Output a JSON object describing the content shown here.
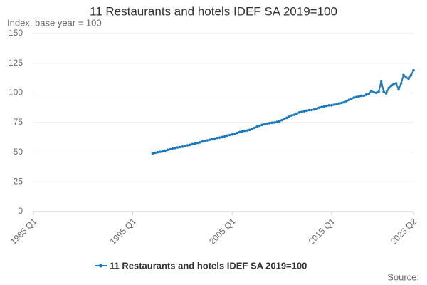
{
  "chart_data": {
    "type": "line",
    "title": "11 Restaurants and hotels IDEF SA 2019=100",
    "subtitle": "Index, base year = 100",
    "source": "Source:",
    "categories": [
      "1985 Q1",
      null,
      null,
      null,
      null,
      null,
      null,
      null,
      null,
      null,
      null,
      null,
      null,
      null,
      null,
      null,
      null,
      null,
      null,
      null,
      null,
      null,
      null,
      null,
      null,
      null,
      null,
      null,
      null,
      null,
      null,
      null,
      null,
      null,
      null,
      null,
      null,
      null,
      null,
      null,
      "1995 Q1",
      null,
      null,
      null,
      null,
      null,
      null,
      null,
      null,
      null,
      null,
      null,
      null,
      null,
      null,
      null,
      null,
      null,
      null,
      null,
      null,
      null,
      null,
      null,
      null,
      null,
      null,
      null,
      null,
      null,
      null,
      null,
      null,
      null,
      null,
      null,
      null,
      null,
      null,
      null,
      "2005 Q1",
      null,
      null,
      null,
      null,
      null,
      null,
      null,
      null,
      null,
      null,
      null,
      null,
      null,
      null,
      null,
      null,
      null,
      null,
      null,
      null,
      null,
      null,
      null,
      null,
      null,
      null,
      null,
      null,
      null,
      null,
      null,
      null,
      null,
      null,
      null,
      null,
      null,
      null,
      null,
      "2015 Q1",
      null,
      null,
      null,
      null,
      null,
      null,
      null,
      null,
      null,
      null,
      null,
      null,
      null,
      null,
      null,
      null,
      null,
      null,
      null,
      null,
      null,
      null,
      null,
      null,
      null,
      null,
      null,
      null,
      null,
      null,
      null,
      null,
      "2023 Q2"
    ],
    "series": [
      {
        "name": "11 Restaurants and hotels IDEF SA 2019=100",
        "color": "#1a7ac0",
        "values": [
          null,
          null,
          null,
          null,
          null,
          null,
          null,
          null,
          null,
          null,
          null,
          null,
          null,
          null,
          null,
          null,
          null,
          null,
          null,
          null,
          null,
          null,
          null,
          null,
          null,
          null,
          null,
          null,
          null,
          null,
          null,
          null,
          null,
          null,
          null,
          null,
          null,
          null,
          null,
          null,
          null,
          null,
          null,
          null,
          null,
          null,
          null,
          null,
          49,
          49.5,
          50,
          50.3,
          50.8,
          51.3,
          52,
          52.5,
          53,
          53.5,
          54,
          54.3,
          54.7,
          55.2,
          55.8,
          56.2,
          56.8,
          57.2,
          57.8,
          58.3,
          59,
          59.5,
          60,
          60.5,
          61,
          61.5,
          62,
          62.3,
          62.8,
          63.3,
          64,
          64.5,
          65,
          65.5,
          66.2,
          67,
          67.5,
          68,
          68.3,
          68.8,
          69.5,
          70.5,
          71.5,
          72.3,
          73,
          73.5,
          74,
          74.5,
          74.8,
          75,
          75.5,
          76,
          77,
          78,
          79,
          80,
          81,
          81.5,
          82.5,
          83.5,
          84,
          84.5,
          85,
          85.5,
          85.5,
          86,
          86.5,
          87.5,
          88,
          88.5,
          89,
          89.5,
          89.5,
          90,
          90.5,
          91,
          91.5,
          92,
          93,
          94,
          95,
          96,
          96.5,
          97,
          97.5,
          97.5,
          98.5,
          99,
          101.5,
          100.5,
          100,
          101,
          110,
          101,
          99.5,
          104,
          106,
          107.5,
          108,
          103,
          108,
          115,
          113,
          112,
          115,
          119
        ]
      }
    ],
    "ylim": [
      0,
      150
    ],
    "yticks": [
      0,
      25,
      50,
      75,
      100,
      125,
      150
    ],
    "grid": true
  }
}
